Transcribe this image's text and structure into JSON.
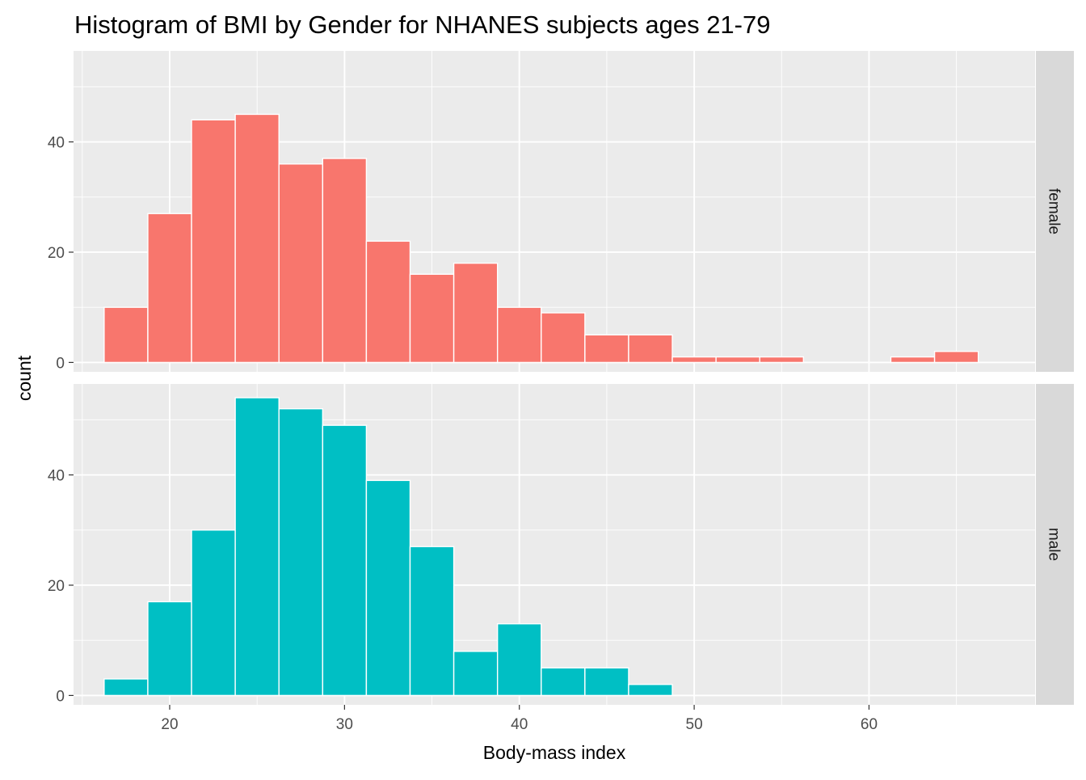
{
  "chart_data": {
    "type": "bar",
    "subtype": "faceted-histogram",
    "title": "Histogram of BMI by Gender for NHANES subjects ages 21-79",
    "xlabel": "Body-mass index",
    "ylabel": "count",
    "xlim": [
      14.5,
      69.5
    ],
    "xticks": [
      20,
      30,
      40,
      50,
      60
    ],
    "grid": true,
    "bin_width": 2.5,
    "bins_start": 16.25,
    "facets": [
      {
        "label": "female",
        "color": "#F8766D",
        "ylim": [
          -1.7,
          56.5
        ],
        "yticks": [
          0,
          20,
          40
        ],
        "counts": [
          10,
          27,
          44,
          45,
          36,
          37,
          22,
          16,
          18,
          10,
          9,
          5,
          5,
          1,
          1,
          1,
          0,
          0,
          1,
          2
        ]
      },
      {
        "label": "male",
        "color": "#00BFC4",
        "ylim": [
          -1.7,
          56.5
        ],
        "yticks": [
          0,
          20,
          40
        ],
        "counts": [
          3,
          17,
          30,
          54,
          52,
          49,
          39,
          27,
          8,
          13,
          5,
          5,
          2,
          0,
          0,
          0,
          0,
          0,
          0,
          0
        ]
      }
    ],
    "colors": {
      "panel_background": "#EBEBEB",
      "grid": "#FFFFFF",
      "strip_background": "#D9D9D9",
      "bar_outline": "#FFFFFF"
    }
  }
}
